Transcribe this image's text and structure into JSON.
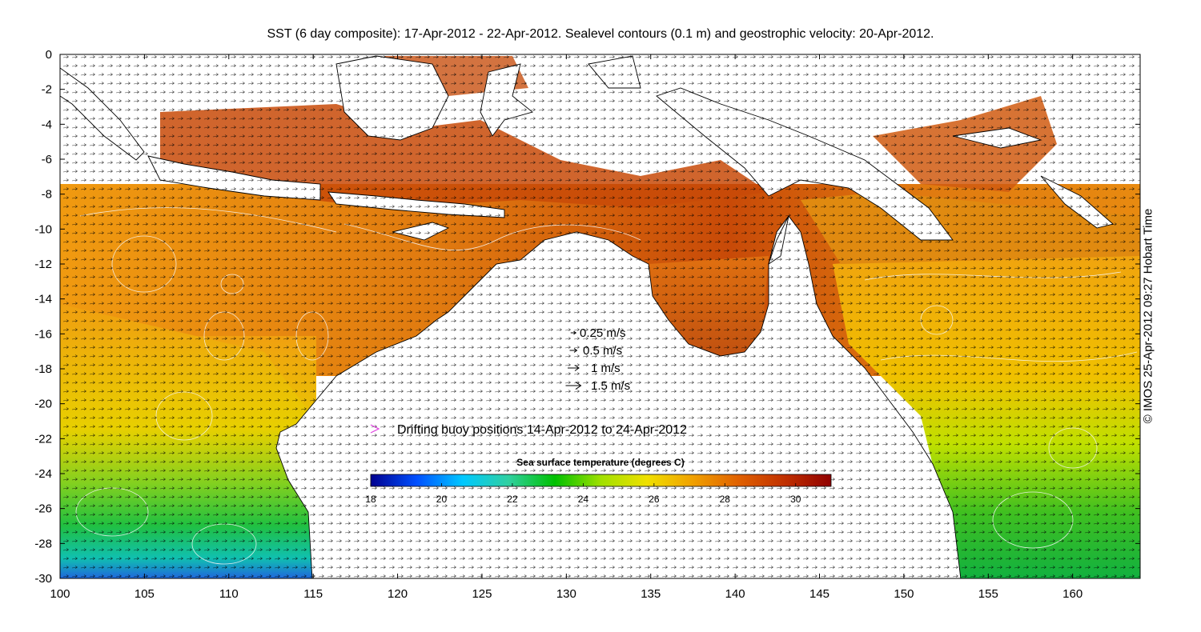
{
  "title": "SST (6 day composite): 17-Apr-2012 - 22-Apr-2012. Sealevel contours (0.1 m) and geostrophic velocity: 20-Apr-2012.",
  "copyright": "© IMOS 25-Apr-2012 09:27 Hobart Time",
  "map": {
    "lon_range": [
      100,
      164
    ],
    "lat_range": [
      -30,
      0
    ],
    "x_ticks": [
      100,
      105,
      110,
      115,
      120,
      125,
      130,
      135,
      140,
      145,
      150,
      155,
      160
    ],
    "x_tick_labels": [
      "100",
      "105",
      "110",
      "115",
      "120",
      "125",
      "130",
      "135",
      "140",
      "145",
      "150",
      "155",
      "160"
    ],
    "y_ticks": [
      0,
      -2,
      -4,
      -6,
      -8,
      -10,
      -12,
      -14,
      -16,
      -18,
      -20,
      -22,
      -24,
      -26,
      -28,
      -30
    ],
    "y_tick_labels": [
      "0",
      "-2",
      "-4",
      "-6",
      "-8",
      "-10",
      "-12",
      "-14",
      "-16",
      "-18",
      "-20",
      "-22",
      "-24",
      "-26",
      "-28",
      "-30"
    ]
  },
  "velocity_legend": [
    {
      "label": "0.25 m/s",
      "speed": 0.25
    },
    {
      "label": "0.5 m/s",
      "speed": 0.5
    },
    {
      "label": "1 m/s",
      "speed": 1
    },
    {
      "label": "1.5 m/s",
      "speed": 1.5
    }
  ],
  "buoy_legend": {
    "label": "Drifting buoy positions 14-Apr-2012 to 24-Apr-2012",
    "color": "#e040e0"
  },
  "colorbar": {
    "title": "Sea surface temperature (degrees C)",
    "range": [
      18,
      31
    ],
    "ticks": [
      18,
      20,
      22,
      24,
      26,
      28,
      30
    ],
    "tick_labels": [
      "18",
      "20",
      "22",
      "24",
      "26",
      "28",
      "30"
    ],
    "colors": [
      "#00008f",
      "#0050ff",
      "#00c8ff",
      "#30d0a0",
      "#00c000",
      "#a0e000",
      "#f0e000",
      "#f0a000",
      "#e06000",
      "#c03000",
      "#900000"
    ]
  },
  "colors": {
    "land": "#ffffff",
    "coastline": "#000000",
    "contours": "#f0f0f0",
    "vectors": "#000000",
    "buoy": "#e040e0"
  }
}
